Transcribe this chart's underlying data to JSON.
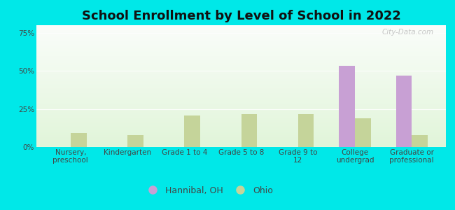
{
  "title": "School Enrollment by Level of School in 2022",
  "categories": [
    "Nursery,\npreschool",
    "Kindergarten",
    "Grade 1 to 4",
    "Grade 5 to 8",
    "Grade 9 to\n12",
    "College\nundergrad",
    "Graduate or\nprofessional"
  ],
  "hannibal": [
    0,
    0,
    0,
    0,
    0,
    53.5,
    47.0
  ],
  "ohio": [
    9.0,
    8.0,
    20.5,
    21.5,
    21.5,
    19.0,
    8.0
  ],
  "hannibal_color": "#c8a0d4",
  "ohio_color": "#c5d49a",
  "background_color": "#00e8e8",
  "title_fontsize": 13,
  "tick_fontsize": 7.5,
  "legend_fontsize": 9,
  "ylim": [
    0,
    80
  ],
  "yticks": [
    0,
    25,
    50,
    75
  ],
  "ytick_labels": [
    "0%",
    "25%",
    "50%",
    "75%"
  ],
  "watermark": "City-Data.com",
  "bar_width": 0.28,
  "legend_labels": [
    "Hannibal, OH",
    "Ohio"
  ]
}
